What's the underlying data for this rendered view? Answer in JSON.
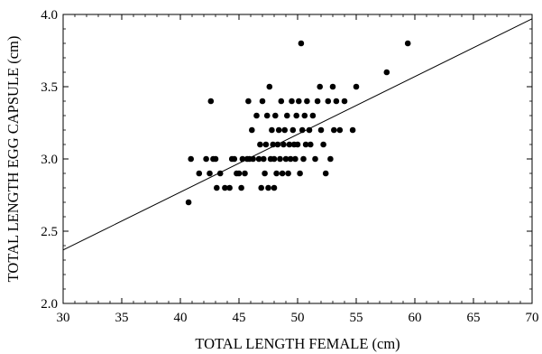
{
  "chart_data": {
    "type": "scatter",
    "title": "",
    "xlabel": "TOTAL LENGTH FEMALE (cm)",
    "ylabel": "TOTAL LENGTH EGG CAPSULE (cm)",
    "xlim": [
      30,
      70
    ],
    "ylim": [
      2.0,
      4.0
    ],
    "xticks": [
      30,
      35,
      40,
      45,
      50,
      55,
      60,
      65,
      70
    ],
    "yticks": [
      2.0,
      2.5,
      3.0,
      3.5,
      4.0
    ],
    "ytick_labels": [
      "2.0",
      "2.5",
      "3.0",
      "3.5",
      "4.0"
    ],
    "grid": false,
    "fit_line": {
      "x": [
        30,
        70
      ],
      "y": [
        2.37,
        3.97
      ]
    },
    "colors": {
      "points": "#000000",
      "line": "#000000",
      "axes": "#000000"
    },
    "series": [
      {
        "points": [
          [
            40.7,
            2.7
          ],
          [
            40.9,
            3.0
          ],
          [
            41.6,
            2.9
          ],
          [
            42.2,
            3.0
          ],
          [
            42.5,
            2.9
          ],
          [
            42.6,
            3.4
          ],
          [
            42.8,
            3.0
          ],
          [
            43.0,
            3.0
          ],
          [
            43.1,
            2.8
          ],
          [
            43.4,
            2.9
          ],
          [
            43.8,
            2.8
          ],
          [
            44.2,
            2.8
          ],
          [
            44.4,
            3.0
          ],
          [
            44.6,
            3.0
          ],
          [
            44.8,
            2.9
          ],
          [
            45.0,
            2.9
          ],
          [
            45.2,
            2.8
          ],
          [
            45.3,
            3.0
          ],
          [
            45.5,
            2.9
          ],
          [
            45.7,
            3.0
          ],
          [
            45.8,
            3.4
          ],
          [
            45.9,
            3.0
          ],
          [
            46.1,
            3.2
          ],
          [
            46.2,
            3.0
          ],
          [
            46.5,
            3.3
          ],
          [
            46.7,
            3.0
          ],
          [
            46.8,
            3.1
          ],
          [
            46.9,
            2.8
          ],
          [
            47.0,
            3.4
          ],
          [
            47.1,
            3.0
          ],
          [
            47.2,
            2.9
          ],
          [
            47.3,
            3.1
          ],
          [
            47.4,
            3.3
          ],
          [
            47.5,
            2.8
          ],
          [
            47.6,
            3.5
          ],
          [
            47.7,
            3.0
          ],
          [
            47.8,
            3.2
          ],
          [
            47.9,
            3.1
          ],
          [
            48.0,
            2.8
          ],
          [
            48.0,
            3.0
          ],
          [
            48.1,
            3.3
          ],
          [
            48.2,
            2.9
          ],
          [
            48.3,
            3.1
          ],
          [
            48.4,
            3.2
          ],
          [
            48.5,
            3.0
          ],
          [
            48.6,
            3.4
          ],
          [
            48.7,
            2.9
          ],
          [
            48.8,
            3.1
          ],
          [
            48.9,
            3.2
          ],
          [
            49.0,
            3.0
          ],
          [
            49.1,
            3.3
          ],
          [
            49.2,
            2.9
          ],
          [
            49.3,
            3.1
          ],
          [
            49.4,
            3.0
          ],
          [
            49.5,
            3.4
          ],
          [
            49.6,
            3.2
          ],
          [
            49.7,
            3.1
          ],
          [
            49.8,
            3.0
          ],
          [
            49.9,
            3.3
          ],
          [
            50.0,
            3.1
          ],
          [
            50.1,
            3.4
          ],
          [
            50.2,
            2.9
          ],
          [
            50.3,
            3.8
          ],
          [
            50.4,
            3.2
          ],
          [
            50.5,
            3.0
          ],
          [
            50.6,
            3.3
          ],
          [
            50.7,
            3.1
          ],
          [
            50.8,
            3.4
          ],
          [
            51.0,
            3.2
          ],
          [
            51.1,
            3.1
          ],
          [
            51.3,
            3.3
          ],
          [
            51.5,
            3.0
          ],
          [
            51.7,
            3.4
          ],
          [
            51.9,
            3.5
          ],
          [
            52.0,
            3.2
          ],
          [
            52.2,
            3.1
          ],
          [
            52.4,
            2.9
          ],
          [
            52.6,
            3.4
          ],
          [
            52.8,
            3.0
          ],
          [
            53.0,
            3.5
          ],
          [
            53.1,
            3.2
          ],
          [
            53.3,
            3.4
          ],
          [
            53.6,
            3.2
          ],
          [
            54.0,
            3.4
          ],
          [
            54.7,
            3.2
          ],
          [
            55.0,
            3.5
          ],
          [
            57.6,
            3.6
          ],
          [
            59.4,
            3.8
          ]
        ]
      }
    ]
  }
}
